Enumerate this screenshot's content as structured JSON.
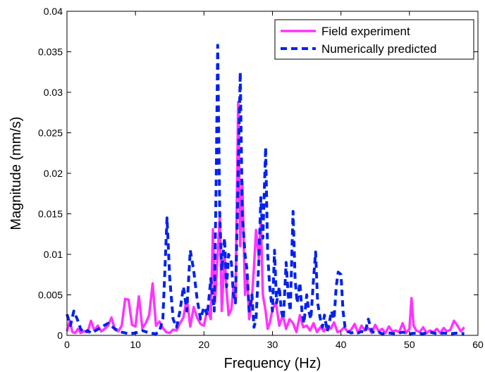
{
  "chart_data": {
    "type": "line",
    "title": "",
    "xlabel": "Frequency (Hz)",
    "ylabel": "Magnitude (mm/s)",
    "xlim": [
      0,
      60
    ],
    "ylim": [
      0,
      0.04
    ],
    "xticks": [
      0,
      10,
      20,
      30,
      40,
      50,
      60
    ],
    "yticks": [
      0,
      0.005,
      0.01,
      0.015,
      0.02,
      0.025,
      0.03,
      0.035,
      0.04
    ],
    "xtick_labels": [
      "0",
      "10",
      "20",
      "30",
      "40",
      "50",
      "60"
    ],
    "ytick_labels": [
      "0",
      "0.005",
      "0.01",
      "0.015",
      "0.02",
      "0.025",
      "0.03",
      "0.035",
      "0.04"
    ],
    "grid": false,
    "legend_position": "top-right",
    "series": [
      {
        "name": "Field experiment",
        "color": "#ff33ff",
        "style": "solid",
        "x": [
          0,
          0.4,
          0.8,
          1.2,
          1.6,
          2.0,
          2.5,
          3.0,
          3.5,
          4.0,
          4.5,
          5.0,
          5.5,
          6.0,
          6.5,
          7.0,
          7.5,
          8.0,
          8.5,
          9.0,
          9.5,
          10.0,
          10.5,
          11.0,
          11.5,
          12.0,
          12.5,
          13.0,
          13.5,
          14.0,
          14.5,
          15.0,
          15.5,
          16.0,
          16.5,
          17.0,
          17.5,
          18.0,
          18.5,
          19.0,
          19.5,
          20.0,
          20.5,
          21.0,
          21.3,
          21.6,
          22.0,
          22.3,
          22.6,
          23.0,
          23.3,
          23.6,
          24.0,
          24.3,
          24.6,
          25.0,
          25.3,
          25.6,
          26.0,
          26.3,
          26.6,
          27.0,
          27.3,
          27.6,
          28.0,
          28.3,
          28.6,
          29.0,
          29.3,
          29.6,
          30.0,
          30.5,
          31.0,
          31.5,
          32.0,
          32.5,
          33.0,
          33.5,
          34.0,
          34.5,
          35.0,
          35.5,
          36.0,
          36.5,
          37.0,
          37.5,
          38.0,
          38.5,
          39.0,
          39.5,
          40.0,
          40.5,
          41.0,
          41.5,
          42.0,
          42.5,
          43.0,
          43.5,
          44.0,
          44.5,
          45.0,
          45.5,
          46.0,
          46.5,
          47.0,
          47.5,
          48.0,
          48.5,
          49.0,
          49.5,
          50.0,
          50.3,
          50.6,
          51.0,
          51.5,
          52.0,
          52.5,
          53.0,
          53.5,
          54.0,
          54.5,
          55.0,
          55.5,
          56.0,
          56.5,
          57.0,
          57.5,
          58.0
        ],
        "y": [
          0.0005,
          0.0018,
          0.0004,
          0.0003,
          0.0008,
          0.0003,
          0.0005,
          0.0004,
          0.0018,
          0.0006,
          0.0012,
          0.0005,
          0.0008,
          0.0012,
          0.0022,
          0.0007,
          0.0005,
          0.0012,
          0.0045,
          0.0044,
          0.0013,
          0.0011,
          0.0048,
          0.0009,
          0.0015,
          0.0025,
          0.0064,
          0.0012,
          0.0017,
          0.0009,
          0.0004,
          0.0003,
          0.0007,
          0.0006,
          0.0015,
          0.0022,
          0.0046,
          0.0011,
          0.0035,
          0.0022,
          0.0014,
          0.0012,
          0.0033,
          0.002,
          0.0131,
          0.004,
          0.01,
          0.0145,
          0.003,
          0.0101,
          0.0055,
          0.0025,
          0.0032,
          0.006,
          0.004,
          0.0288,
          0.011,
          0.019,
          0.005,
          0.0075,
          0.002,
          0.0045,
          0.0085,
          0.013,
          0.0095,
          0.0142,
          0.005,
          0.003,
          0.0008,
          0.0015,
          0.0032,
          0.004,
          0.0012,
          0.0025,
          0.0008,
          0.002,
          0.0015,
          0.0004,
          0.0025,
          0.001,
          0.0012,
          0.0006,
          0.0015,
          0.0004,
          0.001,
          0.0005,
          0.0012,
          0.0008,
          0.0016,
          0.0004,
          0.0006,
          0.001,
          0.0004,
          0.0007,
          0.0014,
          0.0003,
          0.0012,
          0.0006,
          0.0009,
          0.0003,
          0.0013,
          0.0005,
          0.0008,
          0.0003,
          0.0011,
          0.0005,
          0.0006,
          0.0004,
          0.0015,
          0.0003,
          0.0008,
          0.0046,
          0.0012,
          0.0006,
          0.0004,
          0.001,
          0.0003,
          0.0006,
          0.0004,
          0.0008,
          0.0003,
          0.0009,
          0.0005,
          0.0007,
          0.0018,
          0.0012,
          0.0005,
          0.001
        ]
      },
      {
        "name": "Numerically predicted",
        "color": "#0022ee",
        "style": "dashed",
        "x": [
          0,
          0.5,
          1.0,
          1.5,
          2.0,
          2.5,
          3.0,
          3.5,
          4.0,
          5.0,
          6.0,
          7.0,
          8.0,
          9.0,
          10.0,
          11.0,
          12.0,
          13.0,
          13.5,
          14.0,
          14.3,
          14.6,
          15.0,
          15.5,
          16.0,
          16.5,
          17.0,
          17.5,
          18.0,
          18.5,
          19.0,
          19.5,
          20.0,
          20.5,
          21.0,
          21.5,
          21.8,
          22.0,
          22.3,
          22.6,
          23.0,
          23.3,
          23.6,
          24.0,
          24.3,
          24.6,
          25.0,
          25.3,
          25.6,
          26.0,
          26.3,
          26.6,
          27.0,
          27.3,
          27.6,
          28.0,
          28.3,
          28.6,
          29.0,
          29.3,
          29.6,
          30.0,
          30.3,
          30.6,
          31.0,
          31.3,
          31.6,
          32.0,
          32.3,
          32.6,
          33.0,
          33.3,
          33.6,
          34.0,
          34.3,
          34.6,
          35.0,
          35.3,
          35.6,
          36.0,
          36.3,
          36.6,
          37.0,
          37.3,
          37.6,
          38.0,
          38.3,
          38.6,
          39.0,
          39.3,
          39.6,
          40.0,
          40.3,
          40.6,
          41.0,
          41.5,
          42.0,
          42.5,
          43.0,
          43.5,
          44.0,
          44.5,
          45.0,
          45.5,
          46.0,
          47.0,
          48.0,
          49.0,
          50.0,
          51.0,
          52.0,
          53.0,
          54.0,
          55.0,
          56.0,
          57.0,
          58.0
        ],
        "y": [
          0.0026,
          0.0012,
          0.003,
          0.002,
          0.0008,
          0.0003,
          0.0006,
          0.0003,
          0.0005,
          0.001,
          0.0015,
          0.0008,
          0.0004,
          0.0002,
          0.0003,
          0.0006,
          0.0003,
          0.0002,
          0.0005,
          0.002,
          0.008,
          0.0145,
          0.007,
          0.002,
          0.001,
          0.003,
          0.006,
          0.003,
          0.0105,
          0.008,
          0.0045,
          0.002,
          0.0035,
          0.0025,
          0.007,
          0.003,
          0.02,
          0.0358,
          0.015,
          0.008,
          0.012,
          0.006,
          0.01,
          0.009,
          0.005,
          0.004,
          0.02,
          0.0325,
          0.015,
          0.01,
          0.008,
          0.003,
          0.005,
          0.001,
          0.002,
          0.009,
          0.017,
          0.012,
          0.0232,
          0.01,
          0.006,
          0.003,
          0.0105,
          0.004,
          0.006,
          0.003,
          0.002,
          0.009,
          0.005,
          0.003,
          0.0153,
          0.007,
          0.004,
          0.0065,
          0.003,
          0.0015,
          0.005,
          0.003,
          0.002,
          0.007,
          0.0103,
          0.004,
          0.002,
          0.001,
          0.0025,
          0.0005,
          0.0015,
          0.003,
          0.002,
          0.006,
          0.0078,
          0.0075,
          0.003,
          0.001,
          0.0005,
          0.0003,
          0.0004,
          0.0003,
          0.0005,
          0.0003,
          0.002,
          0.0005,
          0.0003,
          0.0004,
          0.0002,
          0.0003,
          0.0002,
          0.0004,
          0.0002,
          0.0003,
          0.0002,
          0.0004,
          0.0002,
          0.0003,
          0.0002,
          0.0003,
          0.0002
        ]
      }
    ]
  }
}
